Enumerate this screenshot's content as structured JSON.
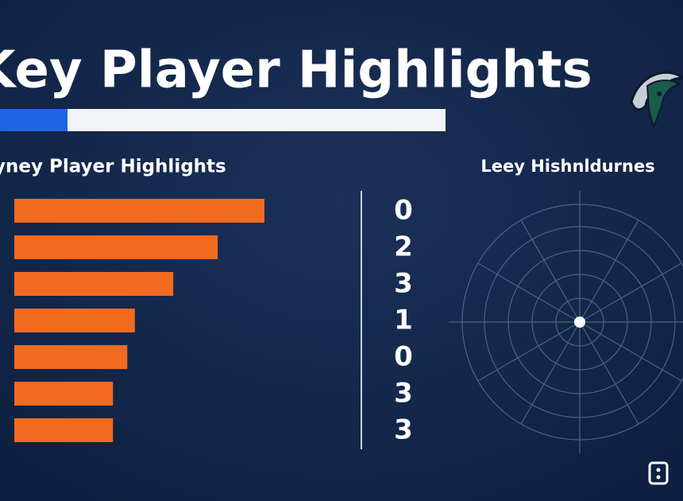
{
  "header": {
    "title": "Key Player Highlights"
  },
  "chart_data": [
    {
      "type": "hbar",
      "title": "yney Player Highlights",
      "values": [
        332,
        270,
        211,
        160,
        150,
        131,
        131
      ],
      "color": "#f26a1f",
      "xlim": [
        0,
        350
      ]
    },
    {
      "type": "polar",
      "title": "Leey Hishnldurnes"
    }
  ],
  "numbers": [
    0,
    2,
    3,
    1,
    0,
    3,
    3
  ]
}
